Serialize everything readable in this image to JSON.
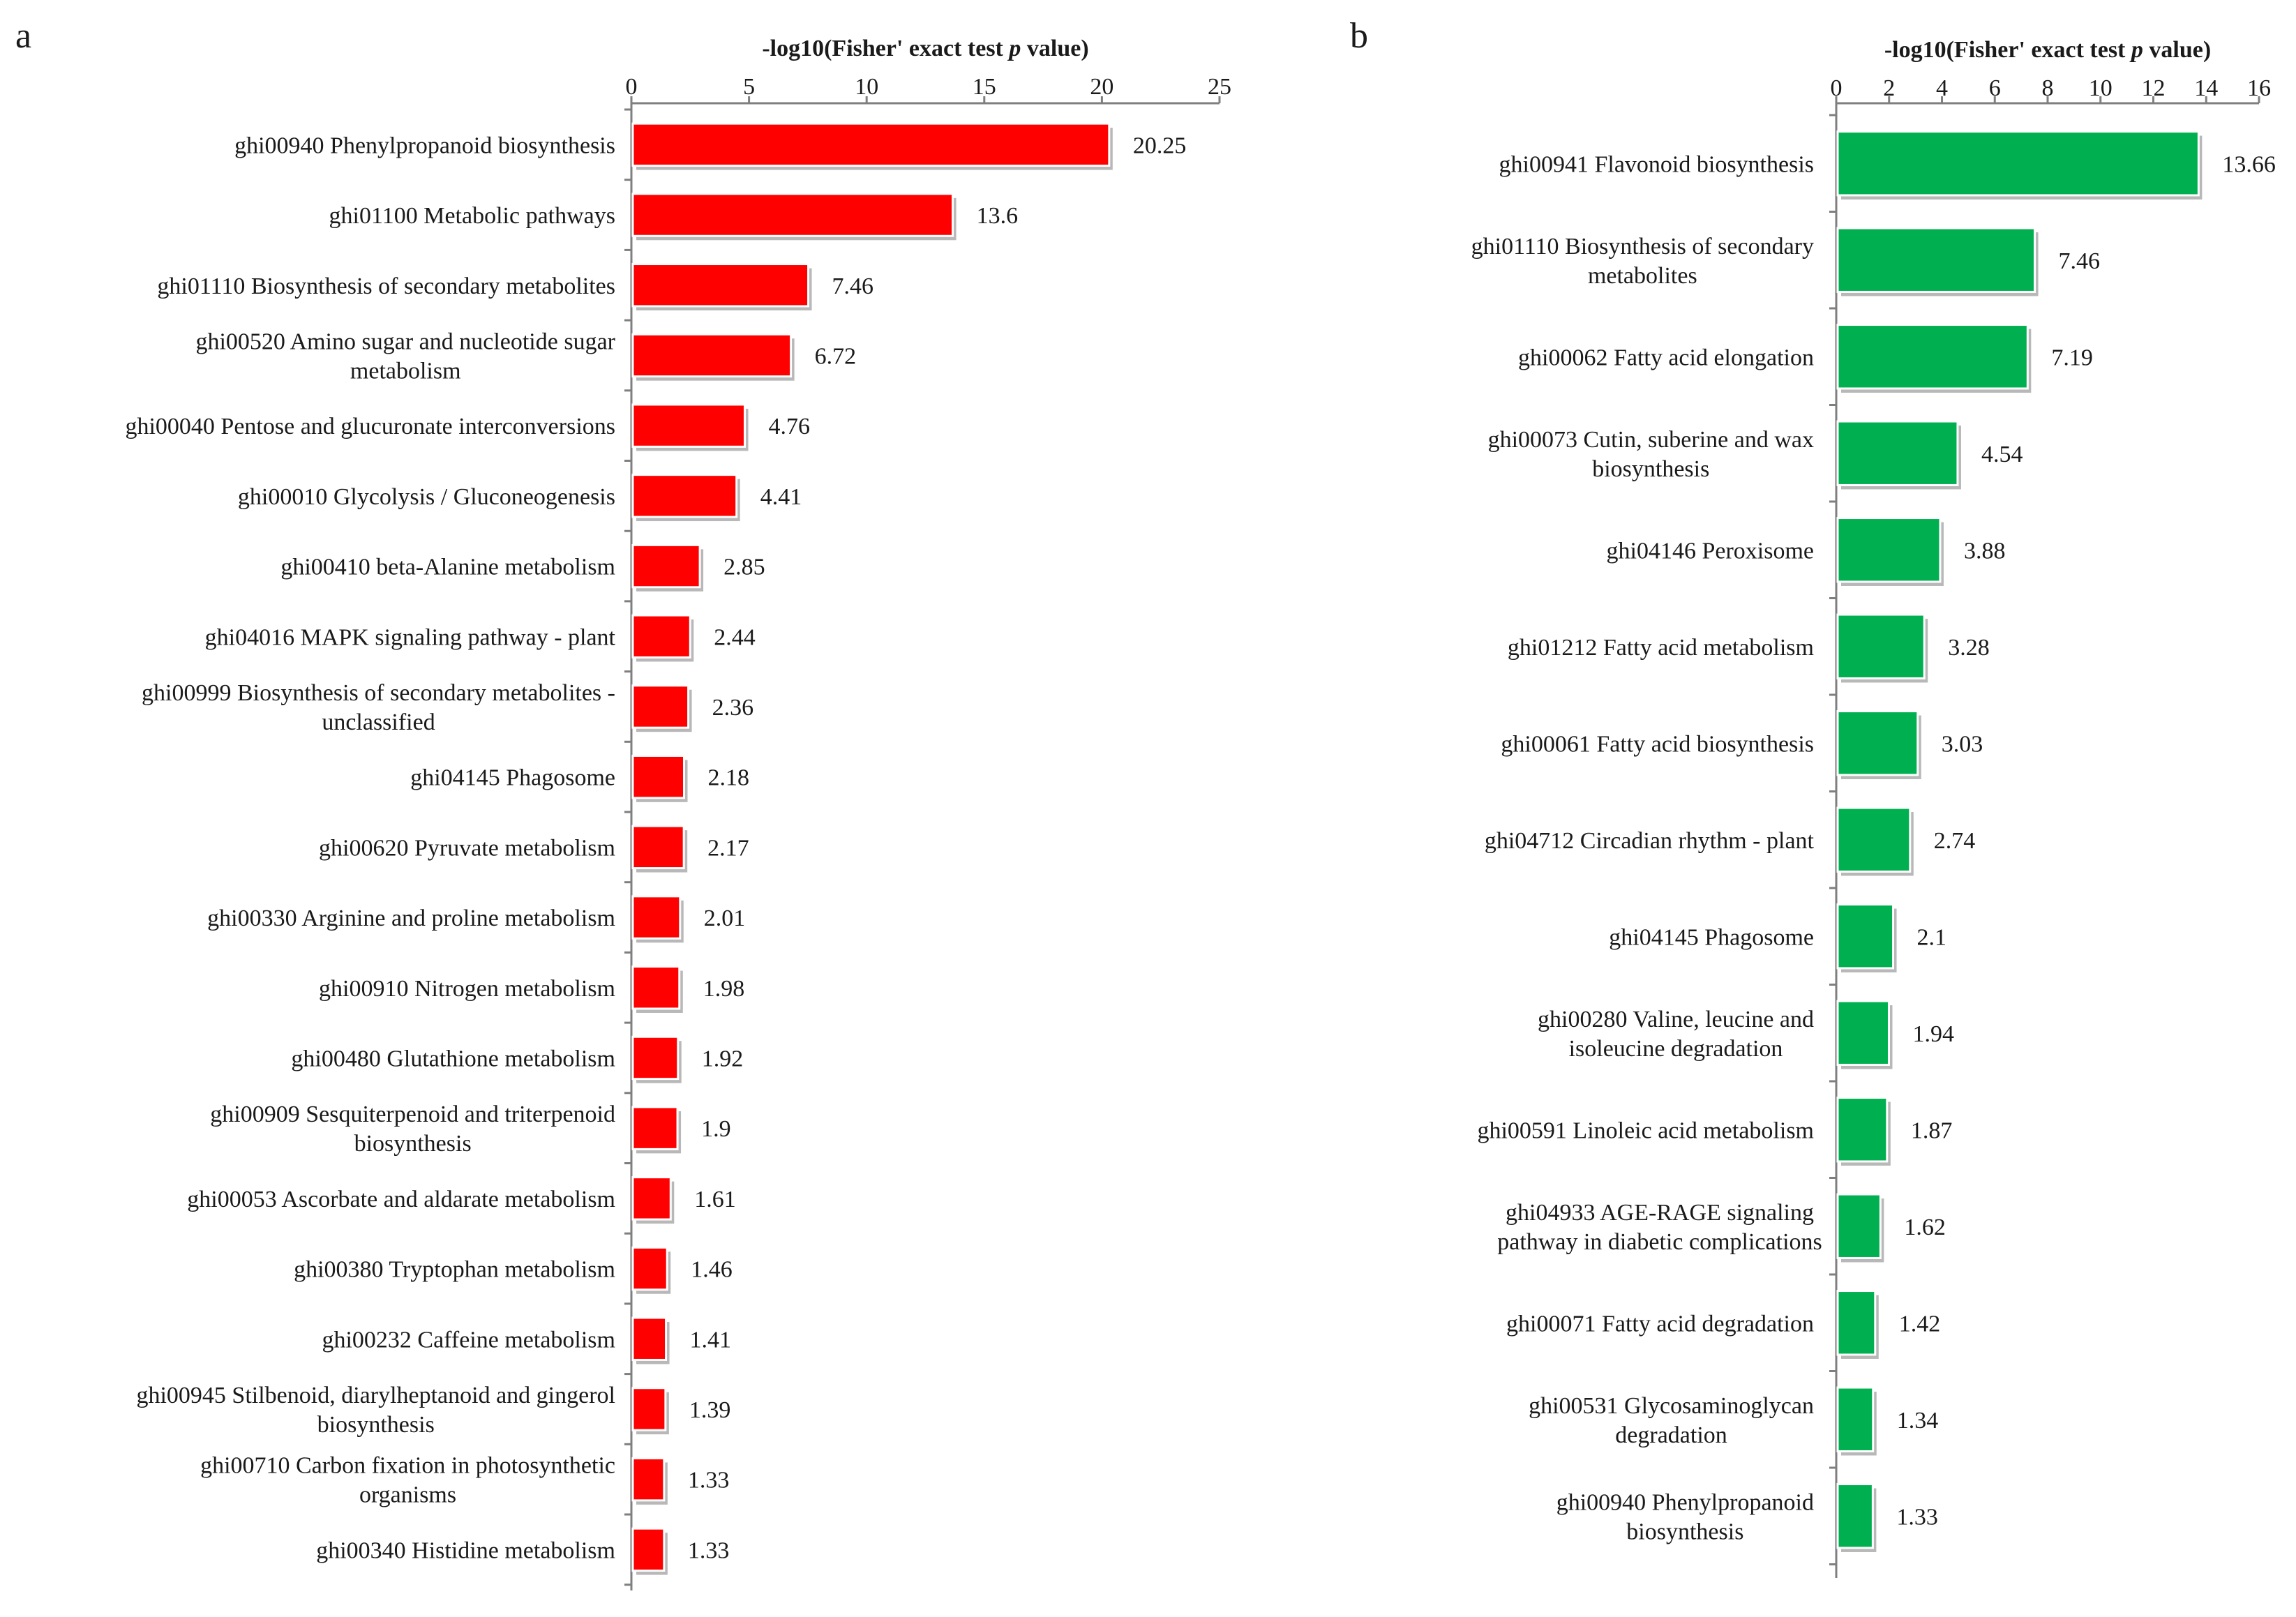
{
  "chart_data": [
    {
      "type": "bar",
      "orientation": "horizontal",
      "panel_label": "a",
      "xlabel": "-log10(Fisher' exact test p value)",
      "xlim": [
        0,
        25
      ],
      "xticks": [
        "0",
        "5",
        "10",
        "15",
        "20",
        "25"
      ],
      "color": "#ff0000",
      "categories": [
        [
          "ghi00940 Phenylpropanoid biosynthesis"
        ],
        [
          "ghi01100 Metabolic pathways"
        ],
        [
          "ghi01110 Biosynthesis of secondary metabolites"
        ],
        [
          "ghi00520 Amino sugar and nucleotide sugar",
          "metabolism"
        ],
        [
          "ghi00040 Pentose and glucuronate interconversions"
        ],
        [
          "ghi00010 Glycolysis / Gluconeogenesis"
        ],
        [
          "ghi00410 beta-Alanine metabolism"
        ],
        [
          "ghi04016 MAPK signaling pathway - plant"
        ],
        [
          "ghi00999 Biosynthesis of secondary metabolites -",
          "unclassified"
        ],
        [
          "ghi04145 Phagosome"
        ],
        [
          "ghi00620 Pyruvate metabolism"
        ],
        [
          "ghi00330 Arginine and proline metabolism"
        ],
        [
          "ghi00910 Nitrogen metabolism"
        ],
        [
          "ghi00480 Glutathione metabolism"
        ],
        [
          "ghi00909 Sesquiterpenoid and triterpenoid",
          "biosynthesis"
        ],
        [
          "ghi00053 Ascorbate and aldarate metabolism"
        ],
        [
          "ghi00380 Tryptophan metabolism"
        ],
        [
          "ghi00232 Caffeine metabolism"
        ],
        [
          "ghi00945 Stilbenoid, diarylheptanoid and gingerol",
          "biosynthesis"
        ],
        [
          "ghi00710 Carbon fixation in photosynthetic",
          "organisms"
        ],
        [
          "ghi00340 Histidine metabolism"
        ]
      ],
      "values": [
        20.25,
        13.6,
        7.46,
        6.72,
        4.76,
        4.41,
        2.85,
        2.44,
        2.36,
        2.18,
        2.17,
        2.01,
        1.98,
        1.92,
        1.9,
        1.61,
        1.46,
        1.41,
        1.39,
        1.33,
        1.33
      ],
      "value_labels": [
        "20.25",
        "13.6",
        "7.46",
        "6.72",
        "4.76",
        "4.41",
        "2.85",
        "2.44",
        "2.36",
        "2.18",
        "2.17",
        "2.01",
        "1.98",
        "1.92",
        "1.9",
        "1.61",
        "1.46",
        "1.41",
        "1.39",
        "1.33",
        "1.33"
      ]
    },
    {
      "type": "bar",
      "orientation": "horizontal",
      "panel_label": "b",
      "xlabel": "-log10(Fisher' exact test p value)",
      "xlim": [
        0,
        16
      ],
      "xticks": [
        "0",
        "2",
        "4",
        "6",
        "8",
        "10",
        "12",
        "14",
        "16"
      ],
      "color": "#00b050",
      "categories": [
        [
          "ghi00941 Flavonoid biosynthesis"
        ],
        [
          "ghi01110 Biosynthesis of secondary",
          "metabolites"
        ],
        [
          "ghi00062 Fatty acid elongation"
        ],
        [
          "ghi00073 Cutin, suberine and wax",
          "biosynthesis"
        ],
        [
          "ghi04146 Peroxisome"
        ],
        [
          "ghi01212 Fatty acid metabolism"
        ],
        [
          "ghi00061 Fatty acid biosynthesis"
        ],
        [
          "ghi04712 Circadian rhythm - plant"
        ],
        [
          "ghi04145 Phagosome"
        ],
        [
          "ghi00280 Valine, leucine and",
          "isoleucine degradation"
        ],
        [
          "ghi00591 Linoleic acid metabolism"
        ],
        [
          "ghi04933 AGE-RAGE signaling",
          "pathway in diabetic complications"
        ],
        [
          "ghi00071 Fatty acid degradation"
        ],
        [
          "ghi00531 Glycosaminoglycan",
          "degradation"
        ],
        [
          "ghi00940 Phenylpropanoid",
          "biosynthesis"
        ]
      ],
      "values": [
        13.66,
        7.46,
        7.19,
        4.54,
        3.88,
        3.28,
        3.03,
        2.74,
        2.1,
        1.94,
        1.87,
        1.62,
        1.42,
        1.34,
        1.33
      ],
      "value_labels": [
        "13.66",
        "7.46",
        "7.19",
        "4.54",
        "3.88",
        "3.28",
        "3.03",
        "2.74",
        "2.1",
        "1.94",
        "1.87",
        "1.62",
        "1.42",
        "1.34",
        "1.33"
      ]
    }
  ]
}
